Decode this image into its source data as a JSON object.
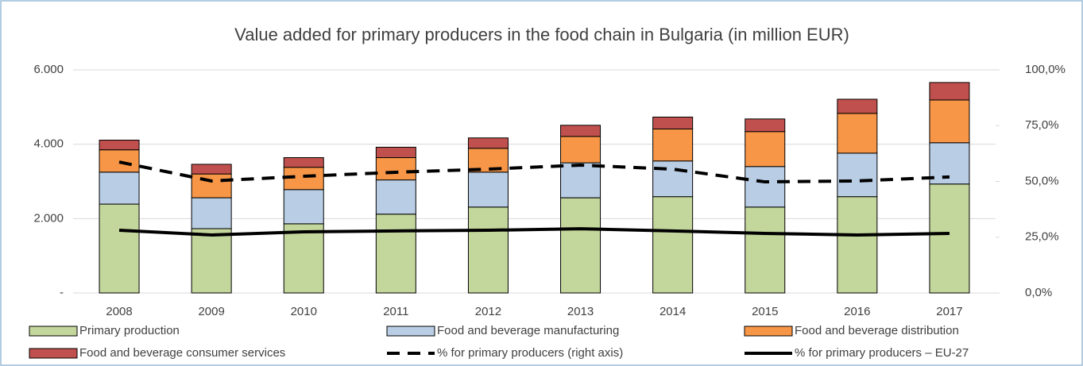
{
  "chart_data": {
    "type": "bar",
    "stacked": true,
    "title": "Value added for primary producers in the food chain in Bulgaria (in million EUR)",
    "categories": [
      "2008",
      "2009",
      "2010",
      "2011",
      "2012",
      "2013",
      "2014",
      "2015",
      "2016",
      "2017"
    ],
    "series": [
      {
        "name": "Primary production",
        "type": "bar",
        "color": "#c3d69b",
        "values": [
          2390,
          1730,
          1860,
          2120,
          2310,
          2560,
          2590,
          2310,
          2590,
          2930
        ]
      },
      {
        "name": "Food and beverage manufacturing",
        "type": "bar",
        "color": "#b9cde5",
        "values": [
          860,
          830,
          920,
          920,
          940,
          940,
          960,
          1090,
          1170,
          1110
        ]
      },
      {
        "name": "Food and beverage distribution",
        "type": "bar",
        "color": "#f79646",
        "values": [
          600,
          640,
          600,
          600,
          640,
          710,
          860,
          940,
          1070,
          1150
        ]
      },
      {
        "name": "Food and beverage consumer services",
        "type": "bar",
        "color": "#c0504d",
        "values": [
          260,
          260,
          260,
          280,
          280,
          300,
          320,
          340,
          380,
          470
        ]
      },
      {
        "name": "% for primary producers (right axis)",
        "type": "line",
        "axis": "y2",
        "dashed": true,
        "color": "#000000",
        "values": [
          58.7,
          50.2,
          52.3,
          54.1,
          55.5,
          57.3,
          55.5,
          49.8,
          50.2,
          52.0
        ]
      },
      {
        "name": "% for primary producers – EU-27",
        "type": "line",
        "axis": "y2",
        "dashed": false,
        "color": "#000000",
        "values": [
          28.1,
          26.0,
          27.4,
          27.8,
          28.1,
          28.8,
          27.8,
          26.7,
          26.0,
          26.7
        ]
      }
    ],
    "ylim": [
      0,
      6000
    ],
    "yticks": [
      {
        "value": 0,
        "label": "-"
      },
      {
        "value": 2000,
        "label": "2.000"
      },
      {
        "value": 4000,
        "label": "4.000"
      },
      {
        "value": 6000,
        "label": "6.000"
      }
    ],
    "y2lim": [
      0,
      100
    ],
    "y2ticks": [
      {
        "value": 0,
        "label": "0,0%"
      },
      {
        "value": 25,
        "label": "25,0%"
      },
      {
        "value": 50,
        "label": "50,0%"
      },
      {
        "value": 75,
        "label": "75,0%"
      },
      {
        "value": 100,
        "label": "100,0%"
      }
    ],
    "grid": true
  }
}
